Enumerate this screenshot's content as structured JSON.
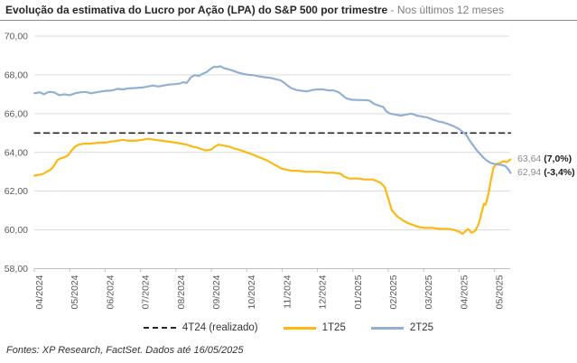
{
  "header": {
    "title": "Evolução da estimativa do Lucro por Ação (LPA) do S&P 500 por trimestre",
    "subtitle": " - Nos últimos 12 meses"
  },
  "footer": {
    "source": "Fontes: XP Research, FactSet. Dados até 16/05/2025"
  },
  "colors": {
    "series_1t25": "#FDB813",
    "series_2t25": "#92B0D3",
    "series_4t24": "#262626",
    "grid": "#DCDCDC",
    "axis_line": "#BFBFBF",
    "axis_text": "#595959",
    "title": "#262626",
    "subtitle": "#7F7F7F",
    "annotation_value": "#8C8C8C",
    "annotation_pct": "#1A1A1A"
  },
  "chart_data": {
    "type": "line",
    "title": "Evolução da estimativa do Lucro por Ação (LPA) do S&P 500 por trimestre - Nos últimos 12 meses",
    "xlabel": "",
    "ylabel": "",
    "ylim": [
      58,
      70
    ],
    "grid": true,
    "legend_position": "bottom",
    "x_tick_labels": [
      "04/2024",
      "05/2024",
      "06/2024",
      "07/2024",
      "08/2024",
      "09/2024",
      "10/2024",
      "11/2024",
      "12/2024",
      "01/2025",
      "02/2025",
      "03/2025",
      "04/2025",
      "05/2025"
    ],
    "y_ticks": [
      {
        "value": 58,
        "label": "58,00"
      },
      {
        "value": 60,
        "label": "60,00"
      },
      {
        "value": 62,
        "label": "62,00"
      },
      {
        "value": 64,
        "label": "64,00"
      },
      {
        "value": 66,
        "label": "66,00"
      },
      {
        "value": 68,
        "label": "68,00"
      },
      {
        "value": 70,
        "label": "70,00"
      }
    ],
    "series": [
      {
        "name": "4T24 (realizado)",
        "color": "#262626",
        "style": "dashed",
        "points": [
          [
            -0.15,
            65
          ],
          [
            13.3,
            65
          ]
        ]
      },
      {
        "name": "1T25",
        "color": "#FDB813",
        "style": "solid",
        "points": [
          [
            -0.15,
            62.8
          ],
          [
            0,
            62.85
          ],
          [
            0.1,
            62.9
          ],
          [
            0.2,
            63.0
          ],
          [
            0.3,
            63.1
          ],
          [
            0.4,
            63.3
          ],
          [
            0.5,
            63.6
          ],
          [
            0.6,
            63.7
          ],
          [
            0.7,
            63.75
          ],
          [
            0.8,
            63.85
          ],
          [
            0.9,
            64.1
          ],
          [
            1,
            64.3
          ],
          [
            1.1,
            64.4
          ],
          [
            1.25,
            64.45
          ],
          [
            1.45,
            64.45
          ],
          [
            1.65,
            64.5
          ],
          [
            1.85,
            64.5
          ],
          [
            2,
            64.55
          ],
          [
            2.2,
            64.6
          ],
          [
            2.35,
            64.65
          ],
          [
            2.5,
            64.6
          ],
          [
            2.7,
            64.6
          ],
          [
            2.9,
            64.65
          ],
          [
            3.05,
            64.7
          ],
          [
            3.25,
            64.65
          ],
          [
            3.45,
            64.6
          ],
          [
            3.65,
            64.55
          ],
          [
            3.85,
            64.5
          ],
          [
            4,
            64.45
          ],
          [
            4.15,
            64.4
          ],
          [
            4.3,
            64.3
          ],
          [
            4.45,
            64.25
          ],
          [
            4.6,
            64.15
          ],
          [
            4.7,
            64.1
          ],
          [
            4.85,
            64.15
          ],
          [
            4.95,
            64.3
          ],
          [
            5.05,
            64.4
          ],
          [
            5.2,
            64.35
          ],
          [
            5.35,
            64.3
          ],
          [
            5.5,
            64.2
          ],
          [
            5.7,
            64.1
          ],
          [
            5.85,
            64.0
          ],
          [
            6,
            63.9
          ],
          [
            6.2,
            63.75
          ],
          [
            6.4,
            63.6
          ],
          [
            6.55,
            63.45
          ],
          [
            6.7,
            63.3
          ],
          [
            6.85,
            63.15
          ],
          [
            7,
            63.1
          ],
          [
            7.1,
            63.05
          ],
          [
            7.3,
            63.05
          ],
          [
            7.5,
            63.0
          ],
          [
            7.7,
            63.0
          ],
          [
            7.9,
            63.0
          ],
          [
            8.1,
            62.95
          ],
          [
            8.3,
            62.95
          ],
          [
            8.5,
            62.9
          ],
          [
            8.6,
            62.75
          ],
          [
            8.75,
            62.65
          ],
          [
            9,
            62.65
          ],
          [
            9.2,
            62.6
          ],
          [
            9.4,
            62.6
          ],
          [
            9.55,
            62.5
          ],
          [
            9.65,
            62.4
          ],
          [
            9.75,
            62.2
          ],
          [
            9.85,
            61.6
          ],
          [
            9.95,
            61.0
          ],
          [
            10.1,
            60.7
          ],
          [
            10.25,
            60.5
          ],
          [
            10.4,
            60.35
          ],
          [
            10.55,
            60.25
          ],
          [
            10.7,
            60.15
          ],
          [
            10.9,
            60.1
          ],
          [
            11.1,
            60.1
          ],
          [
            11.3,
            60.05
          ],
          [
            11.55,
            60.05
          ],
          [
            11.7,
            60.0
          ],
          [
            11.85,
            59.9
          ],
          [
            11.95,
            59.8
          ],
          [
            12.1,
            60.05
          ],
          [
            12.2,
            59.85
          ],
          [
            12.3,
            59.95
          ],
          [
            12.4,
            60.3
          ],
          [
            12.5,
            61.0
          ],
          [
            12.55,
            61.35
          ],
          [
            12.6,
            61.3
          ],
          [
            12.68,
            61.9
          ],
          [
            12.75,
            62.6
          ],
          [
            12.82,
            63.2
          ],
          [
            12.9,
            63.4
          ],
          [
            13,
            63.45
          ],
          [
            13.1,
            63.55
          ],
          [
            13.2,
            63.5
          ],
          [
            13.3,
            63.64
          ]
        ]
      },
      {
        "name": "2T25",
        "color": "#92B0D3",
        "style": "solid",
        "points": [
          [
            -0.15,
            67.05
          ],
          [
            0,
            67.1
          ],
          [
            0.12,
            67.0
          ],
          [
            0.25,
            67.12
          ],
          [
            0.4,
            67.1
          ],
          [
            0.55,
            66.95
          ],
          [
            0.7,
            67.0
          ],
          [
            0.85,
            66.95
          ],
          [
            1,
            67.05
          ],
          [
            1.15,
            67.1
          ],
          [
            1.3,
            67.12
          ],
          [
            1.45,
            67.05
          ],
          [
            1.6,
            67.1
          ],
          [
            1.75,
            67.15
          ],
          [
            1.9,
            67.18
          ],
          [
            2.05,
            67.2
          ],
          [
            2.2,
            67.28
          ],
          [
            2.35,
            67.25
          ],
          [
            2.5,
            67.3
          ],
          [
            2.7,
            67.32
          ],
          [
            2.9,
            67.35
          ],
          [
            3.05,
            67.4
          ],
          [
            3.2,
            67.45
          ],
          [
            3.35,
            67.4
          ],
          [
            3.5,
            67.45
          ],
          [
            3.65,
            67.5
          ],
          [
            3.8,
            67.52
          ],
          [
            3.95,
            67.55
          ],
          [
            4.05,
            67.62
          ],
          [
            4.15,
            67.58
          ],
          [
            4.28,
            67.9
          ],
          [
            4.38,
            67.98
          ],
          [
            4.5,
            67.95
          ],
          [
            4.6,
            68.05
          ],
          [
            4.72,
            68.15
          ],
          [
            4.82,
            68.3
          ],
          [
            4.92,
            68.42
          ],
          [
            5,
            68.4
          ],
          [
            5.1,
            68.45
          ],
          [
            5.2,
            68.35
          ],
          [
            5.32,
            68.3
          ],
          [
            5.45,
            68.22
          ],
          [
            5.6,
            68.12
          ],
          [
            5.75,
            68.05
          ],
          [
            5.9,
            68.0
          ],
          [
            6.05,
            67.98
          ],
          [
            6.2,
            67.92
          ],
          [
            6.35,
            67.88
          ],
          [
            6.5,
            67.85
          ],
          [
            6.65,
            67.78
          ],
          [
            6.8,
            67.72
          ],
          [
            6.9,
            67.6
          ],
          [
            7,
            67.45
          ],
          [
            7.1,
            67.32
          ],
          [
            7.25,
            67.22
          ],
          [
            7.4,
            67.18
          ],
          [
            7.55,
            67.15
          ],
          [
            7.7,
            67.22
          ],
          [
            7.85,
            67.25
          ],
          [
            8,
            67.25
          ],
          [
            8.15,
            67.2
          ],
          [
            8.3,
            67.2
          ],
          [
            8.45,
            67.1
          ],
          [
            8.55,
            66.95
          ],
          [
            8.65,
            66.8
          ],
          [
            8.8,
            66.72
          ],
          [
            9,
            66.7
          ],
          [
            9.15,
            66.7
          ],
          [
            9.3,
            66.68
          ],
          [
            9.45,
            66.5
          ],
          [
            9.6,
            66.4
          ],
          [
            9.7,
            66.35
          ],
          [
            9.8,
            66.1
          ],
          [
            9.9,
            66.0
          ],
          [
            10.05,
            65.95
          ],
          [
            10.2,
            65.9
          ],
          [
            10.35,
            65.95
          ],
          [
            10.5,
            66.0
          ],
          [
            10.65,
            65.9
          ],
          [
            10.8,
            65.85
          ],
          [
            10.95,
            65.8
          ],
          [
            11.1,
            65.7
          ],
          [
            11.25,
            65.6
          ],
          [
            11.4,
            65.55
          ],
          [
            11.55,
            65.45
          ],
          [
            11.7,
            65.35
          ],
          [
            11.85,
            65.2
          ],
          [
            11.95,
            65.05
          ],
          [
            12.05,
            64.9
          ],
          [
            12.15,
            64.6
          ],
          [
            12.25,
            64.35
          ],
          [
            12.35,
            64.1
          ],
          [
            12.45,
            63.9
          ],
          [
            12.55,
            63.7
          ],
          [
            12.65,
            63.55
          ],
          [
            12.75,
            63.45
          ],
          [
            12.85,
            63.4
          ],
          [
            12.95,
            63.38
          ],
          [
            13.05,
            63.35
          ],
          [
            13.15,
            63.3
          ],
          [
            13.25,
            63.1
          ],
          [
            13.3,
            62.94
          ]
        ]
      }
    ],
    "end_labels": [
      {
        "series": "1T25",
        "value": "63,64",
        "pct": "(7,0%)",
        "y": 63.64
      },
      {
        "series": "2T25",
        "value": "62,94",
        "pct": "(-3,4%)",
        "y": 62.94
      }
    ]
  }
}
